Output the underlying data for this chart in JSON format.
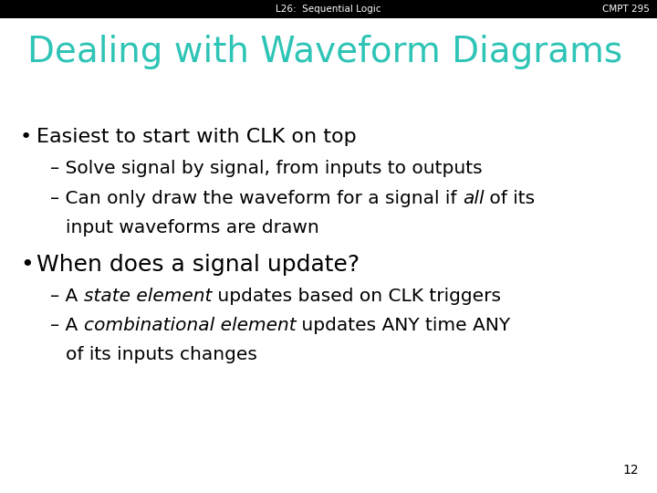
{
  "header_left": "L26:  Sequential Logic",
  "header_right": "CMPT 295",
  "header_bg": "#000000",
  "header_fg": "#ffffff",
  "header_fontsize": 7.5,
  "title": "Dealing with Waveform Diagrams",
  "title_color": "#2ec4b6",
  "title_fontsize": 28,
  "bg_color": "#ffffff",
  "page_number": "12",
  "body_fontsize": 16,
  "sub_fontsize": 14.5,
  "body_color": "#000000",
  "bullet1": "Easiest to start with CLK on top",
  "sub1a": "– Solve signal by signal, from inputs to outputs",
  "sub1b_pre": "– Can only draw the waveform for a signal if ",
  "sub1b_italic": "all",
  "sub1b_post": " of its",
  "sub1b_cont": "input waveforms are drawn",
  "bullet2": "When does a signal update?",
  "sub2a_pre": "– A ",
  "sub2a_italic": "state element",
  "sub2a_post": " updates based on CLK triggers",
  "sub2b_pre": "– A ",
  "sub2b_italic": "combinational element",
  "sub2b_post": " updates ANY time ANY",
  "sub2b_cont": "of its inputs changes"
}
